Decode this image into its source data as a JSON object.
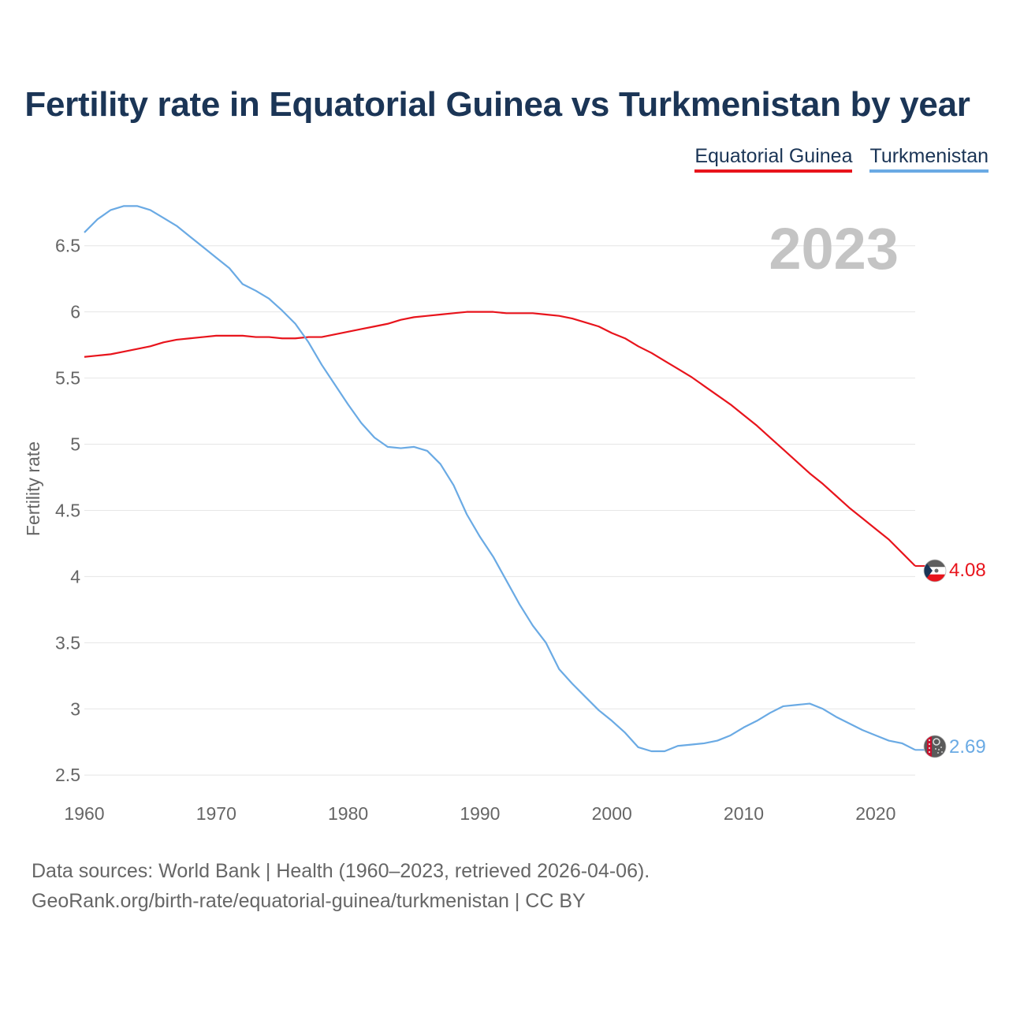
{
  "chart_data": {
    "type": "line",
    "title": "Fertility rate in Equatorial Guinea vs Turkmenistan by year",
    "year_label": "2023",
    "ylabel": "Fertility rate",
    "xlabel": "",
    "xlim": [
      1960,
      2023
    ],
    "ylim": [
      2.4,
      6.82
    ],
    "x_ticks": [
      1960,
      1970,
      1980,
      1990,
      2000,
      2010,
      2020
    ],
    "y_ticks": [
      2.5,
      3,
      3.5,
      4,
      4.5,
      5,
      5.5,
      6,
      6.5
    ],
    "y_tick_labels": [
      "2.5",
      "3",
      "3.5",
      "4",
      "4.5",
      "5",
      "5.5",
      "6",
      "6.5"
    ],
    "grid": true,
    "legend_position": "top-right",
    "x": [
      1960,
      1961,
      1962,
      1963,
      1964,
      1965,
      1966,
      1967,
      1968,
      1969,
      1970,
      1971,
      1972,
      1973,
      1974,
      1975,
      1976,
      1977,
      1978,
      1979,
      1980,
      1981,
      1982,
      1983,
      1984,
      1985,
      1986,
      1987,
      1988,
      1989,
      1990,
      1991,
      1992,
      1993,
      1994,
      1995,
      1996,
      1997,
      1998,
      1999,
      2000,
      2001,
      2002,
      2003,
      2004,
      2005,
      2006,
      2007,
      2008,
      2009,
      2010,
      2011,
      2012,
      2013,
      2014,
      2015,
      2016,
      2017,
      2018,
      2019,
      2020,
      2021,
      2022,
      2023
    ],
    "series": [
      {
        "name": "Equatorial Guinea",
        "color": "#e8141c",
        "end_label": "4.08",
        "values": [
          5.66,
          5.67,
          5.68,
          5.7,
          5.72,
          5.74,
          5.77,
          5.79,
          5.8,
          5.81,
          5.82,
          5.82,
          5.82,
          5.81,
          5.81,
          5.8,
          5.8,
          5.81,
          5.81,
          5.83,
          5.85,
          5.87,
          5.89,
          5.91,
          5.94,
          5.96,
          5.97,
          5.98,
          5.99,
          6.0,
          6.0,
          6.0,
          5.99,
          5.99,
          5.99,
          5.98,
          5.97,
          5.95,
          5.92,
          5.89,
          5.84,
          5.8,
          5.74,
          5.69,
          5.63,
          5.57,
          5.51,
          5.44,
          5.37,
          5.3,
          5.22,
          5.14,
          5.05,
          4.96,
          4.87,
          4.78,
          4.7,
          4.61,
          4.52,
          4.44,
          4.36,
          4.28,
          4.18,
          4.08
        ]
      },
      {
        "name": "Turkmenistan",
        "color": "#6aaae4",
        "end_label": "2.69",
        "values": [
          6.6,
          6.7,
          6.77,
          6.8,
          6.8,
          6.77,
          6.71,
          6.65,
          6.57,
          6.49,
          6.41,
          6.33,
          6.21,
          6.16,
          6.1,
          6.01,
          5.91,
          5.77,
          5.6,
          5.45,
          5.3,
          5.16,
          5.05,
          4.98,
          4.97,
          4.98,
          4.95,
          4.85,
          4.69,
          4.47,
          4.3,
          4.15,
          3.97,
          3.79,
          3.63,
          3.5,
          3.3,
          3.19,
          3.09,
          2.99,
          2.91,
          2.82,
          2.71,
          2.68,
          2.68,
          2.72,
          2.73,
          2.74,
          2.76,
          2.8,
          2.86,
          2.91,
          2.97,
          3.02,
          3.03,
          3.04,
          3.0,
          2.94,
          2.89,
          2.84,
          2.8,
          2.76,
          2.74,
          2.69
        ]
      }
    ]
  },
  "legend": {
    "items": [
      "Equatorial Guinea",
      "Turkmenistan"
    ]
  },
  "footer": {
    "line1": "Data sources: World Bank | Health (1960–2023, retrieved 2026-04-06).",
    "line2": "GeoRank.org/birth-rate/equatorial-guinea/turkmenistan | CC BY"
  }
}
